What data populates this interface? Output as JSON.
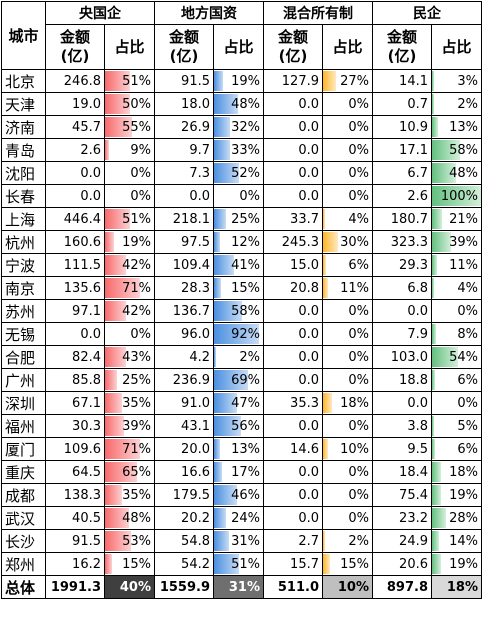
{
  "header": {
    "city_label": "城市",
    "groups": [
      "央国企",
      "地方国资",
      "混合所有制",
      "民企"
    ],
    "amount_label": "金额\n(亿)",
    "share_label": "占比"
  },
  "rows": [
    {
      "city": "北京",
      "v": [
        "246.8",
        "51%",
        "91.5",
        "19%",
        "127.9",
        "27%",
        "14.1",
        "3%"
      ]
    },
    {
      "city": "天津",
      "v": [
        "19.0",
        "50%",
        "18.0",
        "48%",
        "0.0",
        "0%",
        "0.7",
        "2%"
      ]
    },
    {
      "city": "济南",
      "v": [
        "45.7",
        "55%",
        "26.9",
        "32%",
        "0.0",
        "0%",
        "10.9",
        "13%"
      ]
    },
    {
      "city": "青岛",
      "v": [
        "2.6",
        "9%",
        "9.7",
        "33%",
        "0.0",
        "0%",
        "17.1",
        "58%"
      ]
    },
    {
      "city": "沈阳",
      "v": [
        "0.0",
        "0%",
        "7.3",
        "52%",
        "0.0",
        "0%",
        "6.7",
        "48%"
      ]
    },
    {
      "city": "长春",
      "v": [
        "0.0",
        "0%",
        "0.0",
        "0%",
        "0.0",
        "0%",
        "2.6",
        "100%"
      ]
    },
    {
      "city": "上海",
      "v": [
        "446.4",
        "51%",
        "218.1",
        "25%",
        "33.7",
        "4%",
        "180.7",
        "21%"
      ]
    },
    {
      "city": "杭州",
      "v": [
        "160.6",
        "19%",
        "97.5",
        "12%",
        "245.3",
        "30%",
        "323.3",
        "39%"
      ]
    },
    {
      "city": "宁波",
      "v": [
        "111.5",
        "42%",
        "109.4",
        "41%",
        "15.0",
        "6%",
        "29.3",
        "11%"
      ]
    },
    {
      "city": "南京",
      "v": [
        "135.6",
        "71%",
        "28.3",
        "15%",
        "20.8",
        "11%",
        "6.8",
        "4%"
      ]
    },
    {
      "city": "苏州",
      "v": [
        "97.1",
        "42%",
        "136.7",
        "58%",
        "0.0",
        "0%",
        "0.0",
        "0%"
      ]
    },
    {
      "city": "无锡",
      "v": [
        "0.0",
        "0%",
        "96.0",
        "92%",
        "0.0",
        "0%",
        "7.9",
        "8%"
      ]
    },
    {
      "city": "合肥",
      "v": [
        "82.4",
        "43%",
        "4.2",
        "2%",
        "0.0",
        "0%",
        "103.0",
        "54%"
      ]
    },
    {
      "city": "广州",
      "v": [
        "85.8",
        "25%",
        "236.9",
        "69%",
        "0.0",
        "0%",
        "18.8",
        "6%"
      ]
    },
    {
      "city": "深圳",
      "v": [
        "67.1",
        "35%",
        "91.0",
        "47%",
        "35.3",
        "18%",
        "0.0",
        "0%"
      ]
    },
    {
      "city": "福州",
      "v": [
        "30.3",
        "39%",
        "43.1",
        "56%",
        "0.0",
        "0%",
        "3.8",
        "5%"
      ]
    },
    {
      "city": "厦门",
      "v": [
        "109.6",
        "71%",
        "20.0",
        "13%",
        "14.6",
        "10%",
        "9.5",
        "6%"
      ]
    },
    {
      "city": "重庆",
      "v": [
        "64.5",
        "65%",
        "16.6",
        "17%",
        "0.0",
        "0%",
        "18.4",
        "18%"
      ]
    },
    {
      "city": "成都",
      "v": [
        "138.3",
        "35%",
        "179.5",
        "46%",
        "0.0",
        "0%",
        "75.4",
        "19%"
      ]
    },
    {
      "city": "武汉",
      "v": [
        "40.5",
        "48%",
        "20.2",
        "24%",
        "0.0",
        "0%",
        "23.2",
        "28%"
      ]
    },
    {
      "city": "长沙",
      "v": [
        "91.5",
        "53%",
        "54.8",
        "31%",
        "2.7",
        "2%",
        "24.9",
        "14%"
      ]
    },
    {
      "city": "郑州",
      "v": [
        "16.2",
        "15%",
        "54.2",
        "51%",
        "15.7",
        "15%",
        "20.6",
        "19%"
      ]
    }
  ],
  "total": {
    "city": "总体",
    "v": [
      "1991.3",
      "40%",
      "1559.9",
      "31%",
      "511.0",
      "10%",
      "897.8",
      "18%"
    ]
  },
  "bar_colors": {
    "central": "#f8696b",
    "local": "#4a8fe0",
    "mixed": "#ffb628",
    "private": "#63c07f"
  }
}
